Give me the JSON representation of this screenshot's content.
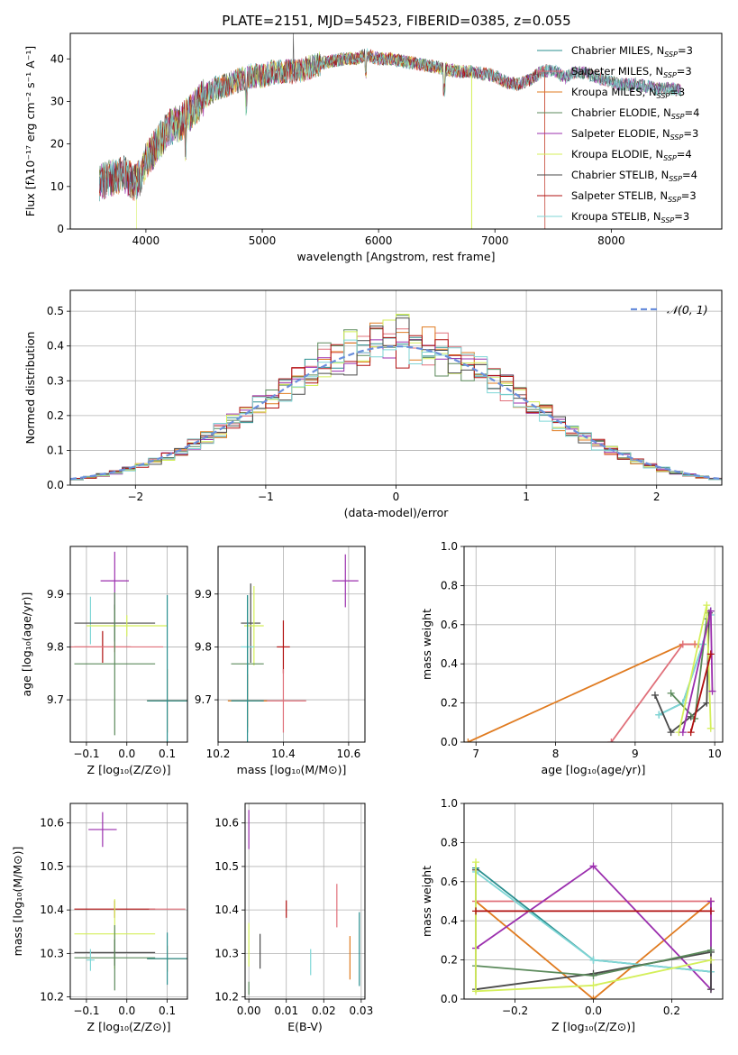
{
  "figure_title": "PLATE=2151, MJD=54523, FIBERID=0385, z=0.055",
  "colors": {
    "Chabrier MILES": "#2a8f8f",
    "Salpeter MILES": "#e0707a",
    "Kroupa MILES": "#e07b20",
    "Chabrier ELODIE": "#5b8a5b",
    "Salpeter ELODIE": "#9b2fae",
    "Kroupa ELODIE": "#d4ef5a",
    "Chabrier STELIB": "#4a4a4a",
    "Salpeter STELIB": "#b01010",
    "Kroupa STELIB": "#7fd6d6",
    "normal": "#6b8fdc"
  },
  "chart_data": [
    {
      "id": "spectrum",
      "type": "line",
      "title": "PLATE=2151, MJD=54523, FIBERID=0385, z=0.055",
      "xlabel": "wavelength [Angstrom, rest frame]",
      "ylabel": "Flux [fλ10⁻¹⁷ erg cm⁻² s⁻¹ A⁻¹]",
      "xlim": [
        3350,
        8950
      ],
      "ylim": [
        0,
        46
      ],
      "xticks": [
        4000,
        5000,
        6000,
        7000,
        8000
      ],
      "yticks": [
        0,
        10,
        20,
        30,
        40
      ],
      "grid": false,
      "legend": "top-right",
      "legend_entries": [
        {
          "model": "Chabrier MILES",
          "label": "Chabrier MILES, N",
          "sub": "SSP",
          "tail": "=3"
        },
        {
          "model": "Salpeter MILES",
          "label": "Salpeter MILES, N",
          "sub": "SSP",
          "tail": "=3"
        },
        {
          "model": "Kroupa MILES",
          "label": "Kroupa MILES, N",
          "sub": "SSP",
          "tail": "=3"
        },
        {
          "model": "Chabrier ELODIE",
          "label": "Chabrier ELODIE, N",
          "sub": "SSP",
          "tail": "=4"
        },
        {
          "model": "Salpeter ELODIE",
          "label": "Salpeter ELODIE, N",
          "sub": "SSP",
          "tail": "=3"
        },
        {
          "model": "Kroupa ELODIE",
          "label": "Kroupa ELODIE, N",
          "sub": "SSP",
          "tail": "=4"
        },
        {
          "model": "Chabrier STELIB",
          "label": "Chabrier STELIB, N",
          "sub": "SSP",
          "tail": "=4"
        },
        {
          "model": "Salpeter STELIB",
          "label": "Salpeter STELIB, N",
          "sub": "SSP",
          "tail": "=3"
        },
        {
          "model": "Kroupa STELIB",
          "label": "Kroupa STELIB, N",
          "sub": "SSP",
          "tail": "=3"
        }
      ],
      "continuum": [
        [
          3600,
          11
        ],
        [
          3700,
          12
        ],
        [
          3800,
          13
        ],
        [
          3900,
          11
        ],
        [
          3950,
          12
        ],
        [
          4000,
          16
        ],
        [
          4100,
          20
        ],
        [
          4200,
          24
        ],
        [
          4300,
          25
        ],
        [
          4400,
          28
        ],
        [
          4500,
          31
        ],
        [
          4600,
          33
        ],
        [
          4700,
          34
        ],
        [
          4800,
          35
        ],
        [
          4900,
          36
        ],
        [
          5000,
          36
        ],
        [
          5100,
          37
        ],
        [
          5200,
          37
        ],
        [
          5300,
          37
        ],
        [
          5400,
          38
        ],
        [
          5500,
          39
        ],
        [
          5600,
          39.5
        ],
        [
          5700,
          40
        ],
        [
          5800,
          40
        ],
        [
          5900,
          41
        ],
        [
          6000,
          40
        ],
        [
          6100,
          40
        ],
        [
          6200,
          39.5
        ],
        [
          6300,
          39
        ],
        [
          6400,
          38.5
        ],
        [
          6500,
          38
        ],
        [
          6600,
          37.5
        ],
        [
          6700,
          37
        ],
        [
          6800,
          37
        ],
        [
          6900,
          36.5
        ],
        [
          7000,
          36
        ],
        [
          7100,
          34.5
        ],
        [
          7200,
          34
        ],
        [
          7300,
          35
        ],
        [
          7400,
          37
        ],
        [
          7500,
          37.5
        ],
        [
          7600,
          35.5
        ],
        [
          7700,
          37
        ],
        [
          7800,
          36.5
        ],
        [
          7900,
          35.5
        ],
        [
          8000,
          34.5
        ],
        [
          8100,
          34
        ],
        [
          8200,
          34
        ],
        [
          8300,
          33.5
        ],
        [
          8400,
          33
        ],
        [
          8500,
          33
        ],
        [
          8600,
          32.5
        ]
      ],
      "model_ends": {
        "Kroupa ELODIE": {
          "x_start": 3920,
          "x_end": 6800
        },
        "Salpeter STELIB": {
          "x_end": 7430
        },
        "Kroupa MILES": {
          "x_end": 7430
        }
      }
    },
    {
      "id": "residual_hist",
      "type": "histogram",
      "xlabel": "(data-model)/error",
      "ylabel": "Normed distribution",
      "xlim": [
        -2.5,
        2.5
      ],
      "ylim": [
        0,
        0.56
      ],
      "xticks": [
        -2,
        -1,
        0,
        1,
        2
      ],
      "yticks": [
        0.0,
        0.1,
        0.2,
        0.3,
        0.4,
        0.5
      ],
      "grid": true,
      "legend": "top-right",
      "reference_curve": {
        "name": "𝒩(0, 1)",
        "mean": 0,
        "sigma": 1
      },
      "bin_width": 0.1
    },
    {
      "id": "age_vs_Z",
      "type": "errorbar",
      "xlabel": "Z [log₁₀(Z/Z⊙)]",
      "ylabel": "age  [log₁₀(age/yr)]",
      "xlim": [
        -0.14,
        0.15
      ],
      "ylim": [
        9.62,
        9.99
      ],
      "xticks": [
        -0.1,
        0.0,
        0.1
      ],
      "xticklabels": [
        "−0.1",
        "0.0",
        "0.1"
      ],
      "yticks": [
        9.7,
        9.8,
        9.9
      ],
      "grid": true,
      "points": [
        {
          "model": "Salpeter ELODIE",
          "x": -0.03,
          "y": 9.925,
          "xerr": 0.035,
          "yerr": 0.055
        },
        {
          "model": "Kroupa STELIB",
          "x": -0.09,
          "y": 9.85,
          "xerr": 0.0,
          "yerr": 0.045
        },
        {
          "model": "Chabrier STELIB",
          "x": -0.03,
          "y": 9.845,
          "xerr": 0.1,
          "yerr": 0.035
        },
        {
          "model": "Kroupa ELODIE",
          "x": 0.0,
          "y": 9.84,
          "xerr": 0.1,
          "yerr": 0.02
        },
        {
          "model": "Salpeter STELIB",
          "x": -0.06,
          "y": 9.8,
          "xerr": 0.07,
          "yerr": 0.03
        },
        {
          "model": "Salpeter MILES",
          "x": -0.03,
          "y": 9.8,
          "xerr": 0.12,
          "yerr": 0.01
        },
        {
          "model": "Chabrier ELODIE",
          "x": -0.03,
          "y": 9.768,
          "xerr": 0.1,
          "yerr": 0.135
        },
        {
          "model": "Kroupa MILES",
          "x": 0.1,
          "y": 9.698,
          "xerr": 0.05,
          "yerr": 0.06
        },
        {
          "model": "Chabrier MILES",
          "x": 0.1,
          "y": 9.698,
          "xerr": 0.05,
          "yerr": 0.2
        }
      ]
    },
    {
      "id": "age_vs_mass",
      "type": "errorbar",
      "xlabel": "mass [log₁₀(M/M⊙)]",
      "ylabel": "",
      "xlim": [
        10.2,
        10.65
      ],
      "ylim": [
        9.62,
        9.99
      ],
      "xticks": [
        10.2,
        10.4,
        10.6
      ],
      "yticks": [
        9.7,
        9.8,
        9.9
      ],
      "grid": true,
      "points": [
        {
          "model": "Salpeter ELODIE",
          "x": 10.59,
          "y": 9.925,
          "xerr": 0.04,
          "yerr": 0.05
        },
        {
          "model": "Chabrier STELIB",
          "x": 10.3,
          "y": 9.845,
          "xerr": 0.03,
          "yerr": 0.075
        },
        {
          "model": "Kroupa ELODIE",
          "x": 10.31,
          "y": 9.84,
          "xerr": 0.03,
          "yerr": 0.075
        },
        {
          "model": "Salpeter STELIB",
          "x": 10.4,
          "y": 9.8,
          "xerr": 0.02,
          "yerr": 0.05
        },
        {
          "model": "Kroupa STELIB",
          "x": 10.29,
          "y": 9.8,
          "xerr": 0.02,
          "yerr": 0.095
        },
        {
          "model": "Chabrier ELODIE",
          "x": 10.29,
          "y": 9.768,
          "xerr": 0.05,
          "yerr": 0.13
        },
        {
          "model": "Salpeter MILES",
          "x": 10.4,
          "y": 9.698,
          "xerr": 0.07,
          "yerr": 0.06
        },
        {
          "model": "Kroupa MILES",
          "x": 10.29,
          "y": 9.698,
          "xerr": 0.06,
          "yerr": 0.05
        },
        {
          "model": "Chabrier MILES",
          "x": 10.29,
          "y": 9.698,
          "xerr": 0.05,
          "yerr": 0.2
        }
      ]
    },
    {
      "id": "weight_vs_age",
      "type": "line",
      "xlabel": "age  [log₁₀(age/yr)]",
      "ylabel": "mass weight",
      "xlim": [
        6.85,
        10.1
      ],
      "ylim": [
        0,
        1
      ],
      "xticks": [
        7,
        8,
        9,
        10
      ],
      "yticks": [
        0.0,
        0.2,
        0.4,
        0.6,
        0.8,
        1.0
      ],
      "grid": true,
      "series": [
        {
          "model": "Kroupa MILES",
          "x": [
            6.9,
            9.6,
            9.75
          ],
          "y": [
            0.0,
            0.5,
            0.5
          ]
        },
        {
          "model": "Salpeter MILES",
          "x": [
            8.7,
            9.6,
            9.8
          ],
          "y": [
            0.0,
            0.5,
            0.5
          ]
        },
        {
          "model": "Chabrier MILES",
          "x": [
            9.3,
            9.6,
            9.85,
            9.95
          ],
          "y": [
            0.14,
            0.2,
            0.5,
            0.67
          ]
        },
        {
          "model": "Kroupa STELIB",
          "x": [
            9.3,
            9.6,
            9.85,
            9.95
          ],
          "y": [
            0.14,
            0.2,
            0.5,
            0.65
          ]
        },
        {
          "model": "Chabrier STELIB",
          "x": [
            9.25,
            9.45,
            9.7,
            9.9,
            9.93
          ],
          "y": [
            0.24,
            0.05,
            0.13,
            0.2,
            0.66
          ]
        },
        {
          "model": "Chabrier ELODIE",
          "x": [
            9.45,
            9.75,
            9.9
          ],
          "y": [
            0.25,
            0.12,
            0.63
          ]
        },
        {
          "model": "Kroupa ELODIE",
          "x": [
            9.55,
            9.9,
            9.95
          ],
          "y": [
            0.05,
            0.7,
            0.07
          ]
        },
        {
          "model": "Salpeter ELODIE",
          "x": [
            9.6,
            9.95,
            9.97
          ],
          "y": [
            0.05,
            0.67,
            0.26
          ]
        },
        {
          "model": "Salpeter STELIB",
          "x": [
            9.7,
            9.95
          ],
          "y": [
            0.05,
            0.45
          ]
        }
      ]
    },
    {
      "id": "mass_vs_Z",
      "type": "errorbar",
      "xlabel": "Z [log₁₀(Z/Z⊙)]",
      "ylabel": "mass [log₁₀(M/M⊙)]",
      "xlim": [
        -0.14,
        0.15
      ],
      "ylim": [
        10.195,
        10.645
      ],
      "xticks": [
        -0.1,
        0.0,
        0.1
      ],
      "xticklabels": [
        "−0.1",
        "0.0",
        "0.1"
      ],
      "yticks": [
        10.2,
        10.3,
        10.4,
        10.5,
        10.6
      ],
      "grid": true,
      "points": [
        {
          "model": "Salpeter ELODIE",
          "x": -0.06,
          "y": 10.585,
          "xerr": 0.035,
          "yerr": 0.04
        },
        {
          "model": "Salpeter STELIB",
          "x": -0.03,
          "y": 10.402,
          "xerr": 0.1,
          "yerr": 0.02
        },
        {
          "model": "Salpeter MILES",
          "x": 0.1,
          "y": 10.402,
          "xerr": 0.045,
          "yerr": 0.0
        },
        {
          "model": "Kroupa ELODIE",
          "x": -0.03,
          "y": 10.345,
          "xerr": 0.1,
          "yerr": 0.08
        },
        {
          "model": "Chabrier STELIB",
          "x": -0.03,
          "y": 10.302,
          "xerr": 0.1,
          "yerr": 0.03
        },
        {
          "model": "Chabrier ELODIE",
          "x": -0.03,
          "y": 10.29,
          "xerr": 0.1,
          "yerr": 0.075
        },
        {
          "model": "Kroupa MILES",
          "x": 0.1,
          "y": 10.288,
          "xerr": 0.05,
          "yerr": 0.03
        },
        {
          "model": "Kroupa STELIB",
          "x": -0.09,
          "y": 10.285,
          "xerr": 0.01,
          "yerr": 0.025
        },
        {
          "model": "Chabrier MILES",
          "x": 0.1,
          "y": 10.288,
          "xerr": 0.05,
          "yerr": 0.06
        }
      ]
    },
    {
      "id": "mass_vs_ebv",
      "type": "errorbar",
      "xlabel": "E(B-V)",
      "ylabel": "",
      "xlim": [
        -0.001,
        0.031
      ],
      "ylim": [
        10.195,
        10.645
      ],
      "xticks": [
        0.0,
        0.01,
        0.02,
        0.03
      ],
      "xticklabels": [
        "0.00",
        "0.01",
        "0.02",
        "0.03"
      ],
      "yticks": [
        10.2,
        10.3,
        10.4,
        10.5,
        10.6
      ],
      "grid": true,
      "points": [
        {
          "model": "Salpeter ELODIE",
          "x": 0.0,
          "y": 10.585,
          "xerr": 0,
          "yerr": 0.045
        },
        {
          "model": "Kroupa ELODIE",
          "x": 0.0,
          "y": 10.32,
          "xerr": 0,
          "yerr": 0.05
        },
        {
          "model": "Chabrier ELODIE",
          "x": 0.0,
          "y": 10.22,
          "xerr": 0,
          "yerr": 0.015
        },
        {
          "model": "Chabrier STELIB",
          "x": 0.003,
          "y": 10.305,
          "xerr": 0,
          "yerr": 0.04
        },
        {
          "model": "Salpeter STELIB",
          "x": 0.01,
          "y": 10.402,
          "xerr": 0,
          "yerr": 0.02
        },
        {
          "model": "Kroupa STELIB",
          "x": 0.0165,
          "y": 10.28,
          "xerr": 0,
          "yerr": 0.03
        },
        {
          "model": "Salpeter MILES",
          "x": 0.0235,
          "y": 10.41,
          "xerr": 0,
          "yerr": 0.05
        },
        {
          "model": "Kroupa MILES",
          "x": 0.027,
          "y": 10.29,
          "xerr": 0,
          "yerr": 0.05
        },
        {
          "model": "Chabrier MILES",
          "x": 0.0295,
          "y": 10.31,
          "xerr": 0,
          "yerr": 0.085
        }
      ]
    },
    {
      "id": "weight_vs_Z",
      "type": "line",
      "xlabel": "Z [log₁₀(Z/Z⊙)]",
      "ylabel": "mass weight",
      "xlim": [
        -0.33,
        0.33
      ],
      "ylim": [
        0,
        1
      ],
      "xticks": [
        -0.2,
        0.0,
        0.2
      ],
      "xticklabels": [
        "−0.2",
        "0.0",
        "0.2"
      ],
      "yticks": [
        0.0,
        0.2,
        0.4,
        0.6,
        0.8,
        1.0
      ],
      "grid": true,
      "series": [
        {
          "model": "Kroupa MILES",
          "x": [
            -0.3,
            0.0,
            0.3
          ],
          "y": [
            0.5,
            0.0,
            0.5
          ]
        },
        {
          "model": "Salpeter MILES",
          "x": [
            -0.3,
            0.3
          ],
          "y": [
            0.5,
            0.5
          ]
        },
        {
          "model": "Salpeter ELODIE",
          "x": [
            -0.3,
            0.0,
            0.3,
            0.3
          ],
          "y": [
            0.26,
            0.68,
            0.05,
            0.5
          ]
        },
        {
          "model": "Chabrier MILES",
          "x": [
            -0.3,
            0.0,
            0.3
          ],
          "y": [
            0.67,
            0.2,
            0.14
          ]
        },
        {
          "model": "Kroupa STELIB",
          "x": [
            -0.3,
            0.0,
            0.3
          ],
          "y": [
            0.65,
            0.2,
            0.14
          ]
        },
        {
          "model": "Chabrier STELIB",
          "x": [
            -0.3,
            -0.3,
            0.0,
            0.3,
            0.3
          ],
          "y": [
            0.66,
            0.05,
            0.13,
            0.24,
            0.05
          ]
        },
        {
          "model": "Chabrier ELODIE",
          "x": [
            -0.3,
            0.0,
            0.3
          ],
          "y": [
            0.17,
            0.12,
            0.25
          ]
        },
        {
          "model": "Kroupa ELODIE",
          "x": [
            -0.3,
            -0.3,
            0.0,
            0.3
          ],
          "y": [
            0.7,
            0.04,
            0.07,
            0.2
          ]
        },
        {
          "model": "Salpeter STELIB",
          "x": [
            -0.3,
            0.3
          ],
          "y": [
            0.45,
            0.45
          ]
        }
      ]
    }
  ]
}
